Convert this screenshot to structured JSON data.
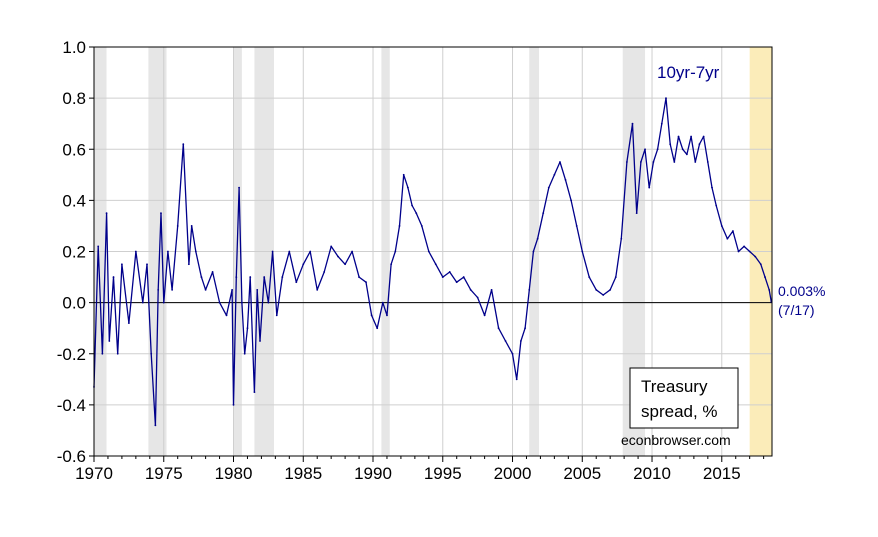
{
  "chart_data": {
    "type": "line",
    "series_label": "10yr-7yr",
    "x_ticks": [
      "1970",
      "1975",
      "1980",
      "1985",
      "1990",
      "1995",
      "2000",
      "2005",
      "2010",
      "2015"
    ],
    "y_ticks": [
      "-0.6",
      "-0.4",
      "-0.2",
      "0.0",
      "0.2",
      "0.4",
      "0.6",
      "0.8",
      "1.0"
    ],
    "xlim": [
      1970,
      2018.6
    ],
    "ylim": [
      -0.6,
      1.0
    ],
    "grid": true,
    "reference_line_y": 0.0,
    "recessions": [
      [
        1969.9,
        1970.9
      ],
      [
        1973.9,
        1975.2
      ],
      [
        1980.0,
        1980.6
      ],
      [
        1981.5,
        1982.9
      ],
      [
        1990.6,
        1991.2
      ],
      [
        2001.2,
        2001.9
      ],
      [
        2007.9,
        2009.5
      ]
    ],
    "forecast_band": [
      2017.0,
      2018.6
    ],
    "series": [
      {
        "name": "10yr-7yr",
        "color": "#00008B",
        "x": [
          1970.0,
          1970.3,
          1970.6,
          1970.9,
          1971.1,
          1971.4,
          1971.7,
          1972.0,
          1972.5,
          1973.0,
          1973.5,
          1973.8,
          1974.1,
          1974.4,
          1974.6,
          1974.8,
          1975.0,
          1975.3,
          1975.6,
          1976.0,
          1976.4,
          1976.8,
          1977.0,
          1977.3,
          1977.7,
          1978.0,
          1978.5,
          1979.0,
          1979.5,
          1979.9,
          1980.0,
          1980.2,
          1980.4,
          1980.6,
          1980.8,
          1981.0,
          1981.2,
          1981.5,
          1981.7,
          1981.9,
          1982.2,
          1982.5,
          1982.8,
          1983.1,
          1983.5,
          1984.0,
          1984.5,
          1985.0,
          1985.5,
          1986.0,
          1986.5,
          1987.0,
          1987.5,
          1988.0,
          1988.5,
          1989.0,
          1989.5,
          1989.9,
          1990.3,
          1990.7,
          1991.0,
          1991.3,
          1991.6,
          1991.9,
          1992.2,
          1992.5,
          1992.8,
          1993.1,
          1993.5,
          1994.0,
          1994.5,
          1995.0,
          1995.5,
          1996.0,
          1996.5,
          1997.0,
          1997.5,
          1998.0,
          1998.5,
          1999.0,
          1999.5,
          2000.0,
          2000.3,
          2000.6,
          2000.9,
          2001.2,
          2001.5,
          2001.8,
          2002.2,
          2002.6,
          2003.0,
          2003.4,
          2003.8,
          2004.2,
          2004.6,
          2005.0,
          2005.5,
          2006.0,
          2006.5,
          2007.0,
          2007.4,
          2007.8,
          2008.2,
          2008.6,
          2008.9,
          2009.2,
          2009.5,
          2009.8,
          2010.1,
          2010.4,
          2010.7,
          2011.0,
          2011.3,
          2011.6,
          2011.9,
          2012.2,
          2012.5,
          2012.8,
          2013.1,
          2013.4,
          2013.7,
          2014.0,
          2014.3,
          2014.6,
          2015.0,
          2015.4,
          2015.8,
          2016.2,
          2016.6,
          2017.0,
          2017.4,
          2017.8,
          2018.1,
          2018.4,
          2018.55
        ],
        "values": [
          -0.33,
          0.22,
          -0.2,
          0.35,
          -0.15,
          0.1,
          -0.2,
          0.15,
          -0.08,
          0.2,
          0.0,
          0.15,
          -0.2,
          -0.48,
          0.05,
          0.35,
          0.0,
          0.2,
          0.05,
          0.3,
          0.62,
          0.15,
          0.3,
          0.2,
          0.1,
          0.05,
          0.12,
          0.0,
          -0.05,
          0.05,
          -0.4,
          0.1,
          0.45,
          0.0,
          -0.2,
          -0.1,
          0.1,
          -0.35,
          0.05,
          -0.15,
          0.1,
          0.0,
          0.2,
          -0.05,
          0.1,
          0.2,
          0.08,
          0.15,
          0.2,
          0.05,
          0.12,
          0.22,
          0.18,
          0.15,
          0.2,
          0.1,
          0.08,
          -0.05,
          -0.1,
          0.0,
          -0.05,
          0.15,
          0.2,
          0.3,
          0.5,
          0.45,
          0.38,
          0.35,
          0.3,
          0.2,
          0.15,
          0.1,
          0.12,
          0.08,
          0.1,
          0.05,
          0.02,
          -0.05,
          0.05,
          -0.1,
          -0.15,
          -0.2,
          -0.3,
          -0.15,
          -0.1,
          0.05,
          0.2,
          0.25,
          0.35,
          0.45,
          0.5,
          0.55,
          0.48,
          0.4,
          0.3,
          0.2,
          0.1,
          0.05,
          0.03,
          0.05,
          0.1,
          0.25,
          0.55,
          0.7,
          0.35,
          0.55,
          0.6,
          0.45,
          0.55,
          0.6,
          0.7,
          0.8,
          0.62,
          0.55,
          0.65,
          0.6,
          0.58,
          0.65,
          0.55,
          0.62,
          0.65,
          0.55,
          0.45,
          0.38,
          0.3,
          0.25,
          0.28,
          0.2,
          0.22,
          0.2,
          0.18,
          0.15,
          0.1,
          0.05,
          0.003
        ]
      }
    ],
    "annotation_value": "0.003%",
    "annotation_date": "(7/17)",
    "legend_box": {
      "line1": "Treasury",
      "line2": "spread, %"
    },
    "source": "econbrowser.com"
  }
}
